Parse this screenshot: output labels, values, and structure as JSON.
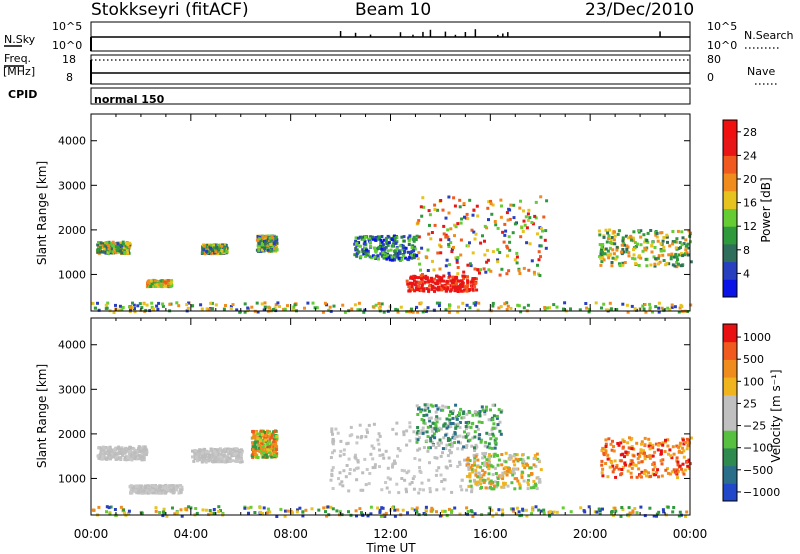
{
  "header": {
    "station": "Stokkseyri (fitACF)",
    "beam": "Beam 10",
    "date": "23/Dec/2010"
  },
  "top_panels": {
    "nsky_label": "N.Sky",
    "nsky_ticks": [
      "10^5",
      "10^0"
    ],
    "nsearch_label": "N.Search",
    "nsearch_ticks": [
      "10^5",
      "10^0"
    ],
    "freq_label": "Freq.",
    "freq_unit": "[MHz]",
    "freq_ticks": [
      "18",
      "8"
    ],
    "nave_label": "Nave",
    "nave_ticks": [
      "80",
      "0"
    ],
    "cpid_label": "CPID",
    "cpid_value": "normal 150"
  },
  "chart_data": [
    {
      "type": "heatmap",
      "name": "power",
      "ylabel": "Slant Range [km]",
      "xlabel": "Time UT",
      "x_ticks": [
        "00:00",
        "04:00",
        "08:00",
        "12:00",
        "16:00",
        "20:00",
        "00:00"
      ],
      "xlim_hours": [
        0,
        24
      ],
      "ylim_km": [
        180,
        4600
      ],
      "y_ticks": [
        1000,
        2000,
        3000,
        4000
      ],
      "colorbar": {
        "label": "Power [dB]",
        "ticks": [
          "4",
          "8",
          "12",
          "16",
          "20",
          "24",
          "28"
        ],
        "range": [
          0,
          30
        ],
        "colors": [
          "#0a14e6",
          "#2840c0",
          "#2e6e5a",
          "#2f9a3c",
          "#66cc33",
          "#e6c31e",
          "#f08c1e",
          "#f05a1e",
          "#e81616",
          "#f01010"
        ]
      },
      "scatter_regions": [
        {
          "t": [
            0.2,
            1.5
          ],
          "r": [
            1500,
            1760
          ],
          "level": "mixed-low"
        },
        {
          "t": [
            2.2,
            3.2
          ],
          "r": [
            760,
            900
          ],
          "level": "orange-green"
        },
        {
          "t": [
            4.4,
            5.4
          ],
          "r": [
            1500,
            1700
          ],
          "level": "mixed-low"
        },
        {
          "t": [
            6.6,
            7.4
          ],
          "r": [
            1550,
            1900
          ],
          "level": "mixed-low"
        },
        {
          "t": [
            10.5,
            13.0
          ],
          "r": [
            1350,
            1900
          ],
          "level": "blue-green"
        },
        {
          "t": [
            12.6,
            15.4
          ],
          "r": [
            650,
            1000
          ],
          "level": "red-high"
        },
        {
          "t": [
            13.0,
            18.2
          ],
          "r": [
            1000,
            2800
          ],
          "level": "mixed-high"
        },
        {
          "t": [
            20.3,
            24.0
          ],
          "r": [
            1200,
            2050
          ],
          "level": "green-orange"
        },
        {
          "t": [
            0.0,
            24.0
          ],
          "r": [
            180,
            400
          ],
          "level": "ground-scatter"
        }
      ]
    },
    {
      "type": "heatmap",
      "name": "velocity",
      "ylabel": "Slant Range [km]",
      "xlabel": "Time UT",
      "x_ticks": [
        "00:00",
        "04:00",
        "08:00",
        "12:00",
        "16:00",
        "20:00",
        "00:00"
      ],
      "xlim_hours": [
        0,
        24
      ],
      "ylim_km": [
        180,
        4600
      ],
      "y_ticks": [
        1000,
        2000,
        3000,
        4000
      ],
      "colorbar": {
        "label": "Velocity [m s⁻¹]",
        "ticks": [
          "1000",
          "500",
          "100",
          "25",
          "−25",
          "−100",
          "−500",
          "−1000"
        ],
        "range": [
          -1200,
          1200
        ],
        "colors": [
          "#2048c8",
          "#2a6e8a",
          "#2f8a50",
          "#58c040",
          "#c0c0c0",
          "#c0c0c0",
          "#f0b41e",
          "#f08c1e",
          "#f05a1e",
          "#e81010"
        ]
      },
      "scatter_regions": [
        {
          "t": [
            0.2,
            2.2
          ],
          "r": [
            1450,
            1750
          ],
          "level": "gray"
        },
        {
          "t": [
            1.5,
            3.6
          ],
          "r": [
            700,
            880
          ],
          "level": "gray"
        },
        {
          "t": [
            4.0,
            6.0
          ],
          "r": [
            1400,
            1700
          ],
          "level": "gray"
        },
        {
          "t": [
            6.4,
            7.4
          ],
          "r": [
            1500,
            2100
          ],
          "level": "orange-green"
        },
        {
          "t": [
            9.5,
            15.5
          ],
          "r": [
            700,
            2300
          ],
          "level": "gray"
        },
        {
          "t": [
            13.0,
            16.4
          ],
          "r": [
            1700,
            2700
          ],
          "level": "green-blue"
        },
        {
          "t": [
            15.0,
            18.0
          ],
          "r": [
            800,
            1600
          ],
          "level": "orange"
        },
        {
          "t": [
            20.4,
            24.0
          ],
          "r": [
            1050,
            1950
          ],
          "level": "orange-red"
        },
        {
          "t": [
            0.0,
            24.0
          ],
          "r": [
            180,
            400
          ],
          "level": "ground-scatter"
        }
      ]
    }
  ]
}
